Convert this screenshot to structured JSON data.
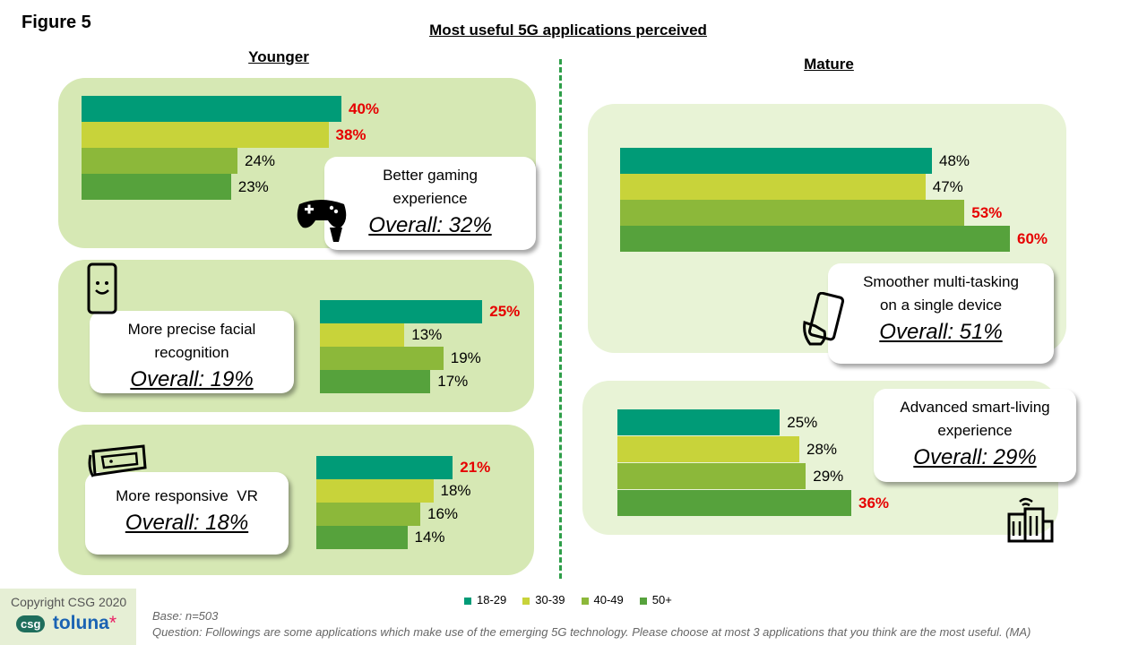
{
  "figure_label": "Figure 5",
  "title": "Most useful 5G applications perceived",
  "sections": {
    "younger": "Younger",
    "mature": "Mature"
  },
  "legend": [
    "18-29",
    "30-39",
    "40-49",
    "50+"
  ],
  "colors": {
    "c18_29": "#009b77",
    "c30_39": "#c8d33a",
    "c40_49": "#8cb83a",
    "c50_plus": "#56a23c",
    "highlight": "#e60000"
  },
  "chart_data": [
    {
      "type": "bar",
      "orientation": "horizontal",
      "group": "Younger",
      "label_line1": "Better gaming",
      "label_line2": "experience",
      "overall": "Overall: 32%",
      "categories": [
        "18-29",
        "30-39",
        "40-49",
        "50+"
      ],
      "values": [
        40,
        38,
        24,
        23
      ],
      "value_labels": [
        "40%",
        "38%",
        "24%",
        "23%"
      ],
      "highlighted": [
        true,
        true,
        false,
        false
      ],
      "icon": "gamepad-icon"
    },
    {
      "type": "bar",
      "orientation": "horizontal",
      "group": "Younger",
      "label_line1": "More precise facial",
      "label_line2": "recognition",
      "overall": "Overall: 19%",
      "categories": [
        "18-29",
        "30-39",
        "40-49",
        "50+"
      ],
      "values": [
        25,
        13,
        19,
        17
      ],
      "value_labels": [
        "25%",
        "13%",
        "19%",
        "17%"
      ],
      "highlighted": [
        true,
        false,
        false,
        false
      ],
      "icon": "smiling-phone-icon"
    },
    {
      "type": "bar",
      "orientation": "horizontal",
      "group": "Younger",
      "label_line1": "More responsive  VR",
      "label_line2": "",
      "overall": "Overall: 18%",
      "categories": [
        "18-29",
        "30-39",
        "40-49",
        "50+"
      ],
      "values": [
        21,
        18,
        16,
        14
      ],
      "value_labels": [
        "21%",
        "18%",
        "16%",
        "14%"
      ],
      "highlighted": [
        true,
        false,
        false,
        false
      ],
      "icon": "vr-headset-icon"
    },
    {
      "type": "bar",
      "orientation": "horizontal",
      "group": "Mature",
      "label_line1": "Smoother multi-tasking",
      "label_line2": "on a single device",
      "overall": "Overall: 51%",
      "categories": [
        "18-29",
        "30-39",
        "40-49",
        "50+"
      ],
      "values": [
        48,
        47,
        53,
        60
      ],
      "value_labels": [
        "48%",
        "47%",
        "53%",
        "60%"
      ],
      "highlighted": [
        false,
        false,
        true,
        true
      ],
      "icon": "hand-phone-icon"
    },
    {
      "type": "bar",
      "orientation": "horizontal",
      "group": "Mature",
      "label_line1": "Advanced smart-living",
      "label_line2": "experience",
      "overall": "Overall: 29%",
      "categories": [
        "18-29",
        "30-39",
        "40-49",
        "50+"
      ],
      "values": [
        25,
        28,
        29,
        36
      ],
      "value_labels": [
        "25%",
        "28%",
        "29%",
        "36%"
      ],
      "highlighted": [
        false,
        false,
        false,
        true
      ],
      "icon": "smart-building-icon"
    }
  ],
  "footer": {
    "copyright": "Copyright CSG 2020",
    "logo_csg": "csg",
    "logo_toluna": "toluna",
    "logo_star": "*",
    "base": "Base: n=503",
    "question": "Question: Followings are some applications which make use of the emerging 5G technology. Please choose at most 3 applications that you think are the most useful. (MA)"
  }
}
